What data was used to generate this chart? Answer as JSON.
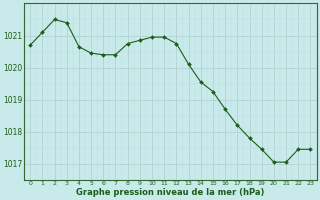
{
  "x": [
    0,
    1,
    2,
    3,
    4,
    5,
    6,
    7,
    8,
    9,
    10,
    11,
    12,
    13,
    14,
    15,
    16,
    17,
    18,
    19,
    20,
    21,
    22,
    23
  ],
  "y": [
    1020.7,
    1021.1,
    1021.5,
    1021.4,
    1020.65,
    1020.45,
    1020.4,
    1020.4,
    1020.75,
    1020.85,
    1020.95,
    1020.95,
    1020.75,
    1020.1,
    1019.55,
    1019.25,
    1018.7,
    1018.2,
    1017.8,
    1017.45,
    1017.05,
    1017.05,
    1017.45,
    1017.45
  ],
  "line_color": "#1a5e1a",
  "marker": "D",
  "marker_size": 2.0,
  "background_color": "#c8eaea",
  "grid_major_color": "#b0cccc",
  "grid_minor_color": "#c0dcdc",
  "tick_label_color": "#1a5e1a",
  "xlabel": "Graphe pression niveau de la mer (hPa)",
  "xlabel_color": "#1a5e1a",
  "ylim": [
    1016.5,
    1022.0
  ],
  "yticks": [
    1017,
    1018,
    1019,
    1020,
    1021
  ],
  "xticks": [
    0,
    1,
    2,
    3,
    4,
    5,
    6,
    7,
    8,
    9,
    10,
    11,
    12,
    13,
    14,
    15,
    16,
    17,
    18,
    19,
    20,
    21,
    22,
    23
  ],
  "spine_color": "#336633",
  "figsize": [
    3.2,
    2.0
  ],
  "dpi": 100
}
